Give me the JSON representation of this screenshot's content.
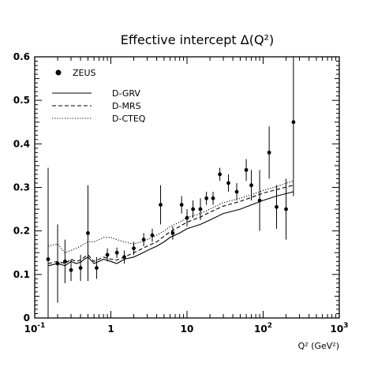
{
  "chart_data": {
    "type": "scatter",
    "title": "Effective intercept Δ(Q²)",
    "xlabel": "Q² (GeV²)",
    "ylabel": "",
    "xscale": "log",
    "xlim": [
      0.1,
      1000
    ],
    "ylim": [
      0,
      0.6
    ],
    "grid": false,
    "legend_position": "top-left",
    "x_ticks": [
      {
        "value": 0.1,
        "base": "10",
        "exp": "-1"
      },
      {
        "value": 1,
        "base": "1",
        "exp": ""
      },
      {
        "value": 10,
        "base": "10",
        "exp": ""
      },
      {
        "value": 100,
        "base": "10",
        "exp": "2"
      },
      {
        "value": 1000,
        "base": "10",
        "exp": "3"
      }
    ],
    "y_ticks": [
      {
        "value": 0,
        "label": "0"
      },
      {
        "value": 0.1,
        "label": "0.1"
      },
      {
        "value": 0.2,
        "label": "0.2"
      },
      {
        "value": 0.3,
        "label": "0.3"
      },
      {
        "value": 0.4,
        "label": "0.4"
      },
      {
        "value": 0.5,
        "label": "0.5"
      },
      {
        "value": 0.6,
        "label": "0.6"
      }
    ],
    "points": {
      "name": "ZEUS",
      "data": [
        {
          "x": 0.15,
          "y": 0.135,
          "err": 0.21
        },
        {
          "x": 0.2,
          "y": 0.125,
          "err": 0.09
        },
        {
          "x": 0.25,
          "y": 0.13,
          "err": 0.05
        },
        {
          "x": 0.3,
          "y": 0.11,
          "err": 0.025
        },
        {
          "x": 0.4,
          "y": 0.115,
          "err": 0.03
        },
        {
          "x": 0.5,
          "y": 0.195,
          "err": 0.11
        },
        {
          "x": 0.65,
          "y": 0.115,
          "err": 0.025
        },
        {
          "x": 0.9,
          "y": 0.145,
          "err": 0.015
        },
        {
          "x": 1.2,
          "y": 0.15,
          "err": 0.012
        },
        {
          "x": 1.5,
          "y": 0.14,
          "err": 0.015
        },
        {
          "x": 2.0,
          "y": 0.16,
          "err": 0.015
        },
        {
          "x": 2.7,
          "y": 0.18,
          "err": 0.015
        },
        {
          "x": 3.5,
          "y": 0.19,
          "err": 0.015
        },
        {
          "x": 4.5,
          "y": 0.26,
          "err": 0.045
        },
        {
          "x": 6.5,
          "y": 0.195,
          "err": 0.015
        },
        {
          "x": 8.5,
          "y": 0.26,
          "err": 0.02
        },
        {
          "x": 10,
          "y": 0.23,
          "err": 0.02
        },
        {
          "x": 12,
          "y": 0.25,
          "err": 0.02
        },
        {
          "x": 15,
          "y": 0.25,
          "err": 0.025
        },
        {
          "x": 18,
          "y": 0.275,
          "err": 0.015
        },
        {
          "x": 22,
          "y": 0.275,
          "err": 0.015
        },
        {
          "x": 27,
          "y": 0.33,
          "err": 0.015
        },
        {
          "x": 35,
          "y": 0.31,
          "err": 0.02
        },
        {
          "x": 45,
          "y": 0.29,
          "err": 0.02
        },
        {
          "x": 60,
          "y": 0.34,
          "err": 0.025
        },
        {
          "x": 70,
          "y": 0.305,
          "err": 0.035
        },
        {
          "x": 90,
          "y": 0.27,
          "err": 0.07
        },
        {
          "x": 120,
          "y": 0.38,
          "err": 0.06
        },
        {
          "x": 150,
          "y": 0.255,
          "err": 0.05
        },
        {
          "x": 200,
          "y": 0.25,
          "err": 0.07
        },
        {
          "x": 250,
          "y": 0.45,
          "err": 0.17
        }
      ]
    },
    "series": [
      {
        "name": "D-GRV",
        "style": "solid",
        "x": [
          0.15,
          0.2,
          0.25,
          0.3,
          0.35,
          0.4,
          0.45,
          0.5,
          0.6,
          0.7,
          0.8,
          1.0,
          1.2,
          1.5,
          2.0,
          2.5,
          3.0,
          4.0,
          5.0,
          6.0,
          8.0,
          10,
          15,
          20,
          30,
          50,
          70,
          100,
          150,
          250
        ],
        "values": [
          0.12,
          0.125,
          0.12,
          0.13,
          0.125,
          0.128,
          0.135,
          0.14,
          0.125,
          0.13,
          0.135,
          0.13,
          0.125,
          0.135,
          0.14,
          0.148,
          0.155,
          0.165,
          0.175,
          0.185,
          0.195,
          0.205,
          0.215,
          0.225,
          0.24,
          0.25,
          0.26,
          0.27,
          0.28,
          0.29
        ]
      },
      {
        "name": "D-MRS",
        "style": "dashed",
        "x": [
          0.15,
          0.2,
          0.25,
          0.3,
          0.35,
          0.4,
          0.45,
          0.5,
          0.6,
          0.7,
          0.8,
          1.0,
          1.2,
          1.5,
          2.0,
          2.5,
          3.0,
          4.0,
          5.0,
          6.0,
          8.0,
          10,
          15,
          20,
          30,
          50,
          70,
          100,
          150,
          250
        ],
        "values": [
          0.125,
          0.13,
          0.125,
          0.135,
          0.13,
          0.133,
          0.14,
          0.145,
          0.13,
          0.135,
          0.14,
          0.135,
          0.133,
          0.14,
          0.15,
          0.158,
          0.165,
          0.175,
          0.188,
          0.198,
          0.21,
          0.22,
          0.232,
          0.243,
          0.257,
          0.268,
          0.277,
          0.287,
          0.295,
          0.305
        ]
      },
      {
        "name": "D-CTEQ",
        "style": "dotted",
        "x": [
          0.15,
          0.2,
          0.25,
          0.3,
          0.35,
          0.4,
          0.45,
          0.5,
          0.6,
          0.7,
          0.8,
          1.0,
          1.2,
          1.5,
          2.0,
          2.5,
          3.0,
          4.0,
          5.0,
          6.0,
          8.0,
          10,
          15,
          20,
          30,
          50,
          70,
          100,
          150,
          250
        ],
        "values": [
          0.165,
          0.17,
          0.15,
          0.155,
          0.16,
          0.165,
          0.17,
          0.175,
          0.175,
          0.18,
          0.185,
          0.185,
          0.18,
          0.175,
          0.17,
          0.175,
          0.18,
          0.19,
          0.2,
          0.21,
          0.22,
          0.23,
          0.24,
          0.25,
          0.265,
          0.275,
          0.283,
          0.293,
          0.302,
          0.315
        ]
      }
    ]
  }
}
